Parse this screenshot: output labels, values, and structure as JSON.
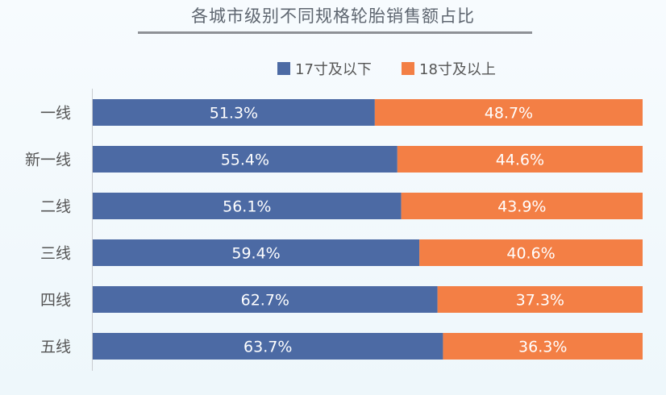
{
  "chart_data": {
    "type": "bar",
    "orientation": "horizontal",
    "stacked": true,
    "title": "各城市级别不同规格轮胎销售额占比",
    "categories": [
      "一线",
      "新一线",
      "二线",
      "三线",
      "四线",
      "五线"
    ],
    "series": [
      {
        "name": "17寸及以下",
        "color": "#4c6aa4",
        "values": [
          51.3,
          55.4,
          56.1,
          59.4,
          62.7,
          63.7
        ],
        "labels": [
          "51.3%",
          "55.4%",
          "56.1%",
          "59.4%",
          "62.7%",
          "63.7%"
        ]
      },
      {
        "name": "18寸及以上",
        "color": "#f37f45",
        "values": [
          48.7,
          44.6,
          43.9,
          40.6,
          37.3,
          36.3
        ],
        "labels": [
          "48.7%",
          "44.6%",
          "43.9%",
          "40.6%",
          "37.3%",
          "36.3%"
        ]
      }
    ],
    "xlim": [
      0,
      100
    ],
    "grid": false,
    "legend_position": "top-center"
  }
}
